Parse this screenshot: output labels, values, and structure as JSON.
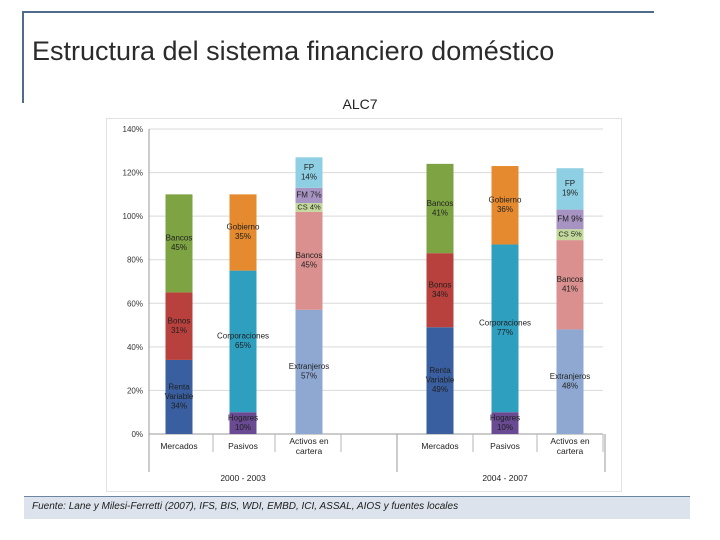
{
  "slide": {
    "title": "Estructura del sistema financiero doméstico",
    "chart_title": "ALC7",
    "footer": "Fuente: Lane y Milesi-Ferretti (2007), IFS, BIS, WDI, EMBD, ICI, ASSAL, AIOS y fuentes locales"
  },
  "chart_data": {
    "type": "bar",
    "title": "ALC7",
    "stacked": true,
    "ylim": [
      0,
      140
    ],
    "y_ticks": [
      0,
      20,
      40,
      60,
      80,
      100,
      120,
      140
    ],
    "y_tick_labels": [
      "0%",
      "20%",
      "40%",
      "60%",
      "80%",
      "100%",
      "120%",
      "140%"
    ],
    "grid": true,
    "groups": [
      {
        "label": "2000 - 2003",
        "bars": [
          {
            "category": "Mercados",
            "segments": [
              {
                "name": "Renta Variable",
                "value": 34,
                "label": "Renta\nVariable\n34%",
                "color": "#3a5fa0"
              },
              {
                "name": "Bonos",
                "value": 31,
                "label": "Bonos\n31%",
                "color": "#b8403d"
              },
              {
                "name": "Bancos",
                "value": 45,
                "label": "Bancos\n45%",
                "color": "#7ea343"
              }
            ]
          },
          {
            "category": "Pasivos",
            "segments": [
              {
                "name": "Hogares",
                "value": 10,
                "label": "Hogares\n10%",
                "color": "#6a4a92"
              },
              {
                "name": "Corporaciones",
                "value": 65,
                "label": "Corporaciones\n65%",
                "color": "#2f9fc0"
              },
              {
                "name": "Gobierno",
                "value": 35,
                "label": "Gobierno\n35%",
                "color": "#e58a2e"
              }
            ]
          },
          {
            "category": "Activos en\ncartera",
            "segments": [
              {
                "name": "Extranjeros",
                "value": 57,
                "label": "Extranjeros\n57%",
                "color": "#8ea8d2"
              },
              {
                "name": "Bancos",
                "value": 45,
                "label": "Bancos\n45%",
                "color": "#d9908e"
              },
              {
                "name": "CS",
                "value": 4,
                "label": "CS 4%",
                "color": "#c3d99b"
              },
              {
                "name": "FM",
                "value": 7,
                "label": "FM 7%",
                "color": "#a894c2"
              },
              {
                "name": "FP",
                "value": 14,
                "label": "FP\n14%",
                "color": "#8fcfe3"
              }
            ]
          }
        ]
      },
      {
        "label": "2004 - 2007",
        "bars": [
          {
            "category": "Mercados",
            "segments": [
              {
                "name": "Renta Variable",
                "value": 49,
                "label": "Renta\nVariable\n49%",
                "color": "#3a5fa0"
              },
              {
                "name": "Bonos",
                "value": 34,
                "label": "Bonos\n34%",
                "color": "#b8403d"
              },
              {
                "name": "Bancos",
                "value": 41,
                "label": "Bancos\n41%",
                "color": "#7ea343"
              }
            ]
          },
          {
            "category": "Pasivos",
            "segments": [
              {
                "name": "Hogares",
                "value": 10,
                "label": "Hogares\n10%",
                "color": "#6a4a92"
              },
              {
                "name": "Corporaciones",
                "value": 77,
                "label": "Corporaciones\n77%",
                "color": "#2f9fc0"
              },
              {
                "name": "Gobierno",
                "value": 36,
                "label": "Gobierno\n36%",
                "color": "#e58a2e"
              }
            ]
          },
          {
            "category": "Activos en\ncartera",
            "segments": [
              {
                "name": "Extranjeros",
                "value": 48,
                "label": "Extranjeros\n48%",
                "color": "#8ea8d2"
              },
              {
                "name": "Bancos",
                "value": 41,
                "label": "Bancos\n41%",
                "color": "#d9908e"
              },
              {
                "name": "CS",
                "value": 5,
                "label": "CS 5%",
                "color": "#c3d99b"
              },
              {
                "name": "FM",
                "value": 9,
                "label": "FM 9%",
                "color": "#a894c2"
              },
              {
                "name": "FP",
                "value": 19,
                "label": "FP\n19%",
                "color": "#8fcfe3"
              }
            ]
          }
        ]
      }
    ]
  }
}
